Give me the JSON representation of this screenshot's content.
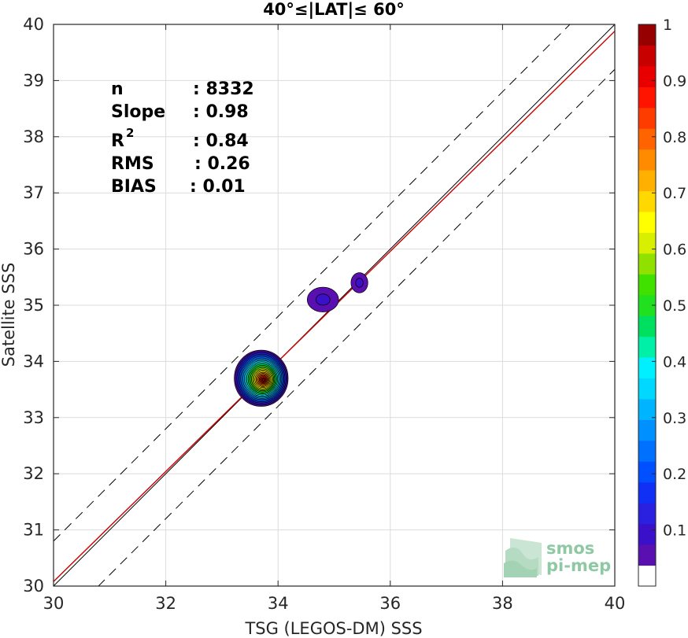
{
  "chart_data": {
    "type": "heatmap",
    "subtype": "density-contour-scatter",
    "title": "40°≤|LAT|≤ 60°",
    "xlabel": "TSG (LEGOS-DM) SSS",
    "ylabel": "Satellite SSS",
    "xlim": [
      30,
      40
    ],
    "ylim": [
      30,
      40
    ],
    "xticks": [
      "30",
      "32",
      "34",
      "36",
      "38",
      "40"
    ],
    "yticks": [
      "30",
      "31",
      "32",
      "33",
      "34",
      "35",
      "36",
      "37",
      "38",
      "39",
      "40"
    ],
    "grid": true,
    "stats": [
      {
        "label": "n",
        "value": ": 8332"
      },
      {
        "label": "Slope",
        "value": ": 0.98"
      },
      {
        "label": "R",
        "sup": "2",
        "value": ": 0.84"
      },
      {
        "label": "RMS",
        "value": ": 0.26"
      },
      {
        "label": "BIAS",
        "value": ": 0.01"
      }
    ],
    "reference_lines": {
      "one_to_one": {
        "slope": 1,
        "intercept": 0,
        "color": "#000000"
      },
      "regression": {
        "slope": 0.98,
        "intercept": 0.68,
        "color": "#cc0000"
      },
      "bounds": {
        "offset": 0.8,
        "style": "dashed",
        "color": "#000000"
      }
    },
    "density_blobs": [
      {
        "x": 33.7,
        "y": 33.7,
        "rx": 0.48,
        "ry": 0.5,
        "peak": 1.0
      },
      {
        "x": 34.8,
        "y": 35.1,
        "rx": 0.28,
        "ry": 0.22,
        "peak": 0.08
      },
      {
        "x": 35.45,
        "y": 35.4,
        "rx": 0.15,
        "ry": 0.18,
        "peak": 0.08
      }
    ],
    "colorbar": {
      "min": 0,
      "max": 1,
      "ticks": [
        "0.1",
        "0.2",
        "0.3",
        "0.4",
        "0.5",
        "0.6",
        "0.7",
        "0.8",
        "0.9",
        "1"
      ],
      "colors": [
        "#ffffff",
        "#5a0fb0",
        "#3a10c8",
        "#2a20e0",
        "#1030f5",
        "#0050ff",
        "#0070ff",
        "#0090ff",
        "#00b4ff",
        "#00d8ff",
        "#00f0ff",
        "#00f0a8",
        "#00e060",
        "#20e020",
        "#40e000",
        "#90e000",
        "#d8f000",
        "#ffff00",
        "#ffd800",
        "#ffb000",
        "#ff8c00",
        "#ff6400",
        "#ff3c00",
        "#ff1400",
        "#e80000",
        "#c80000",
        "#960000"
      ]
    }
  },
  "logo": {
    "line1": "smos",
    "line2": "pi-mep"
  }
}
